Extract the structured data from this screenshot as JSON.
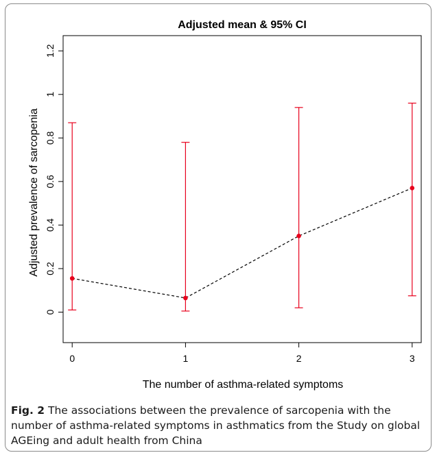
{
  "chart_data": {
    "type": "line",
    "title": "Adjusted mean & 95% CI",
    "xlabel": "The number of asthma-related symptoms",
    "ylabel": "Adjusted prevalence of sarcopenia",
    "x": [
      0,
      1,
      2,
      3
    ],
    "x_tick_labels": [
      "0",
      "1",
      "2",
      "3"
    ],
    "y_ticks": [
      0,
      0.2,
      0.4,
      0.6,
      0.8,
      1,
      1.2
    ],
    "y_tick_labels": [
      "0",
      "0.2",
      "0.4",
      "0.6",
      "0.8",
      "1",
      "1.2"
    ],
    "xlim": [
      -0.08,
      3.08
    ],
    "ylim": [
      -0.14,
      1.27
    ],
    "grid": false,
    "series": [
      {
        "mean": [
          0.155,
          0.065,
          0.35,
          0.57
        ],
        "ci_lower": [
          0.01,
          0.005,
          0.02,
          0.075
        ],
        "ci_upper": [
          0.87,
          0.78,
          0.94,
          0.96
        ]
      }
    ],
    "colors": {
      "points_and_ci": "#e8001c",
      "line": "#000000"
    },
    "line_style": "dashed"
  },
  "caption": {
    "label": "Fig. 2",
    "text": "The associations between the prevalence of sarcopenia with the number of asthma-related symptoms in asthmatics from the Study on global AGEing and adult health from China"
  }
}
